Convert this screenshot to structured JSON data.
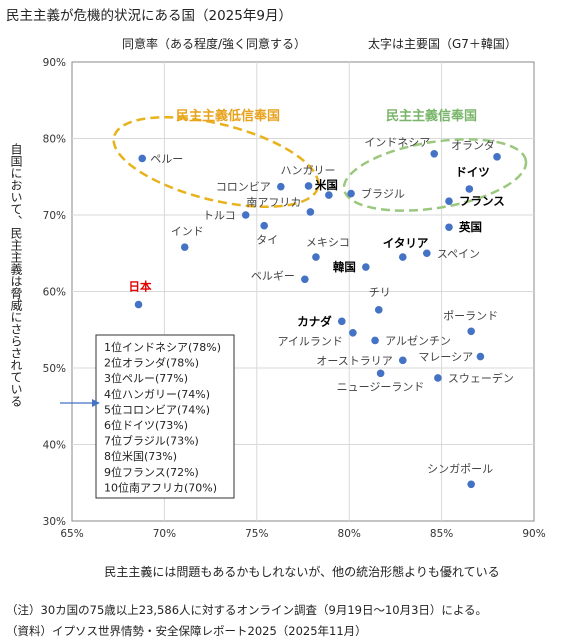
{
  "title": "民主主義が危機的状況にある国（2025年9月）",
  "notes": {
    "note1": "（注）30カ国の75歳以上23,586人に対するオンライン調査（9月19日～10月3日）による。",
    "note2": "（資料）イプソス世界情勢・安全保障レポート2025（2025年11月）"
  },
  "chart_data": {
    "type": "scatter",
    "x_label": "同意率（ある程度/強く同意する）",
    "bold_note": "太字は主要国（G7＋韓国）",
    "xlabel_bottom": "民主主義には問題もあるかもしれないが、他の統治形態よりも優れている",
    "ylabel": "自国において、民主主義は脅威にさらされている",
    "xlim": [
      65,
      90
    ],
    "ylim": [
      30,
      90
    ],
    "x_ticks": [
      "65%",
      "70%",
      "75%",
      "80%",
      "85%",
      "90%"
    ],
    "y_ticks": [
      "30%",
      "40%",
      "50%",
      "60%",
      "70%",
      "80%",
      "90%"
    ],
    "point_color": "#4472c4",
    "groups": [
      {
        "label": "民主主義低信奉国",
        "color": "#e8b21d"
      },
      {
        "label": "民主主義信奉国",
        "color": "#9bc87f"
      }
    ],
    "points": [
      {
        "name": "インドネシア",
        "x": 84.6,
        "y": 78.0,
        "bold": false
      },
      {
        "name": "オランダ",
        "x": 88.0,
        "y": 77.6,
        "bold": false
      },
      {
        "name": "ペルー",
        "x": 68.8,
        "y": 77.4,
        "bold": false
      },
      {
        "name": "ハンガリー",
        "x": 77.8,
        "y": 73.8,
        "bold": false
      },
      {
        "name": "コロンビア",
        "x": 76.3,
        "y": 73.7,
        "bold": false
      },
      {
        "name": "ドイツ",
        "x": 86.5,
        "y": 73.4,
        "bold": true
      },
      {
        "name": "ブラジル",
        "x": 80.1,
        "y": 72.8,
        "bold": false
      },
      {
        "name": "米国",
        "x": 78.9,
        "y": 72.6,
        "bold": true
      },
      {
        "name": "フランス",
        "x": 85.4,
        "y": 71.8,
        "bold": true
      },
      {
        "name": "南アフリカ",
        "x": 77.9,
        "y": 70.4,
        "bold": false
      },
      {
        "name": "トルコ",
        "x": 74.4,
        "y": 70.0,
        "bold": false
      },
      {
        "name": "タイ",
        "x": 75.4,
        "y": 68.6,
        "bold": false
      },
      {
        "name": "英国",
        "x": 85.4,
        "y": 68.4,
        "bold": true
      },
      {
        "name": "インド",
        "x": 71.1,
        "y": 65.8,
        "bold": false
      },
      {
        "name": "スペイン",
        "x": 84.2,
        "y": 65.0,
        "bold": false
      },
      {
        "name": "イタリア",
        "x": 82.9,
        "y": 64.5,
        "bold": true
      },
      {
        "name": "メキシコ",
        "x": 78.2,
        "y": 64.5,
        "bold": false
      },
      {
        "name": "韓国",
        "x": 80.9,
        "y": 63.2,
        "bold": true
      },
      {
        "name": "ベルギー",
        "x": 77.6,
        "y": 61.6,
        "bold": false
      },
      {
        "name": "日本",
        "x": 68.6,
        "y": 58.3,
        "bold": true,
        "highlight": true
      },
      {
        "name": "チリ",
        "x": 81.6,
        "y": 57.6,
        "bold": false
      },
      {
        "name": "カナダ",
        "x": 79.6,
        "y": 56.1,
        "bold": true
      },
      {
        "name": "ポーランド",
        "x": 86.6,
        "y": 54.8,
        "bold": false
      },
      {
        "name": "アイルランド",
        "x": 80.2,
        "y": 54.6,
        "bold": false
      },
      {
        "name": "アルゼンチン",
        "x": 81.4,
        "y": 53.6,
        "bold": false
      },
      {
        "name": "マレーシア",
        "x": 87.1,
        "y": 51.5,
        "bold": false
      },
      {
        "name": "オーストラリア",
        "x": 82.9,
        "y": 51.0,
        "bold": false
      },
      {
        "name": "ニュージーランド",
        "x": 81.7,
        "y": 49.3,
        "bold": false
      },
      {
        "name": "スウェーデン",
        "x": 84.8,
        "y": 48.7,
        "bold": false
      },
      {
        "name": "シンガポール",
        "x": 86.6,
        "y": 34.8,
        "bold": false
      }
    ],
    "ranking_box": [
      "1位インドネシア(78%)",
      "2位オランダ(78%)",
      "3位ペルー(77%)",
      "4位ハンガリー(74%)",
      "5位コロンビア(74%)",
      "6位ドイツ(73%)",
      "7位ブラジル(73%)",
      "8位米国(73%)",
      "9位フランス(72%)",
      "10位南アフリカ(70%)"
    ]
  }
}
